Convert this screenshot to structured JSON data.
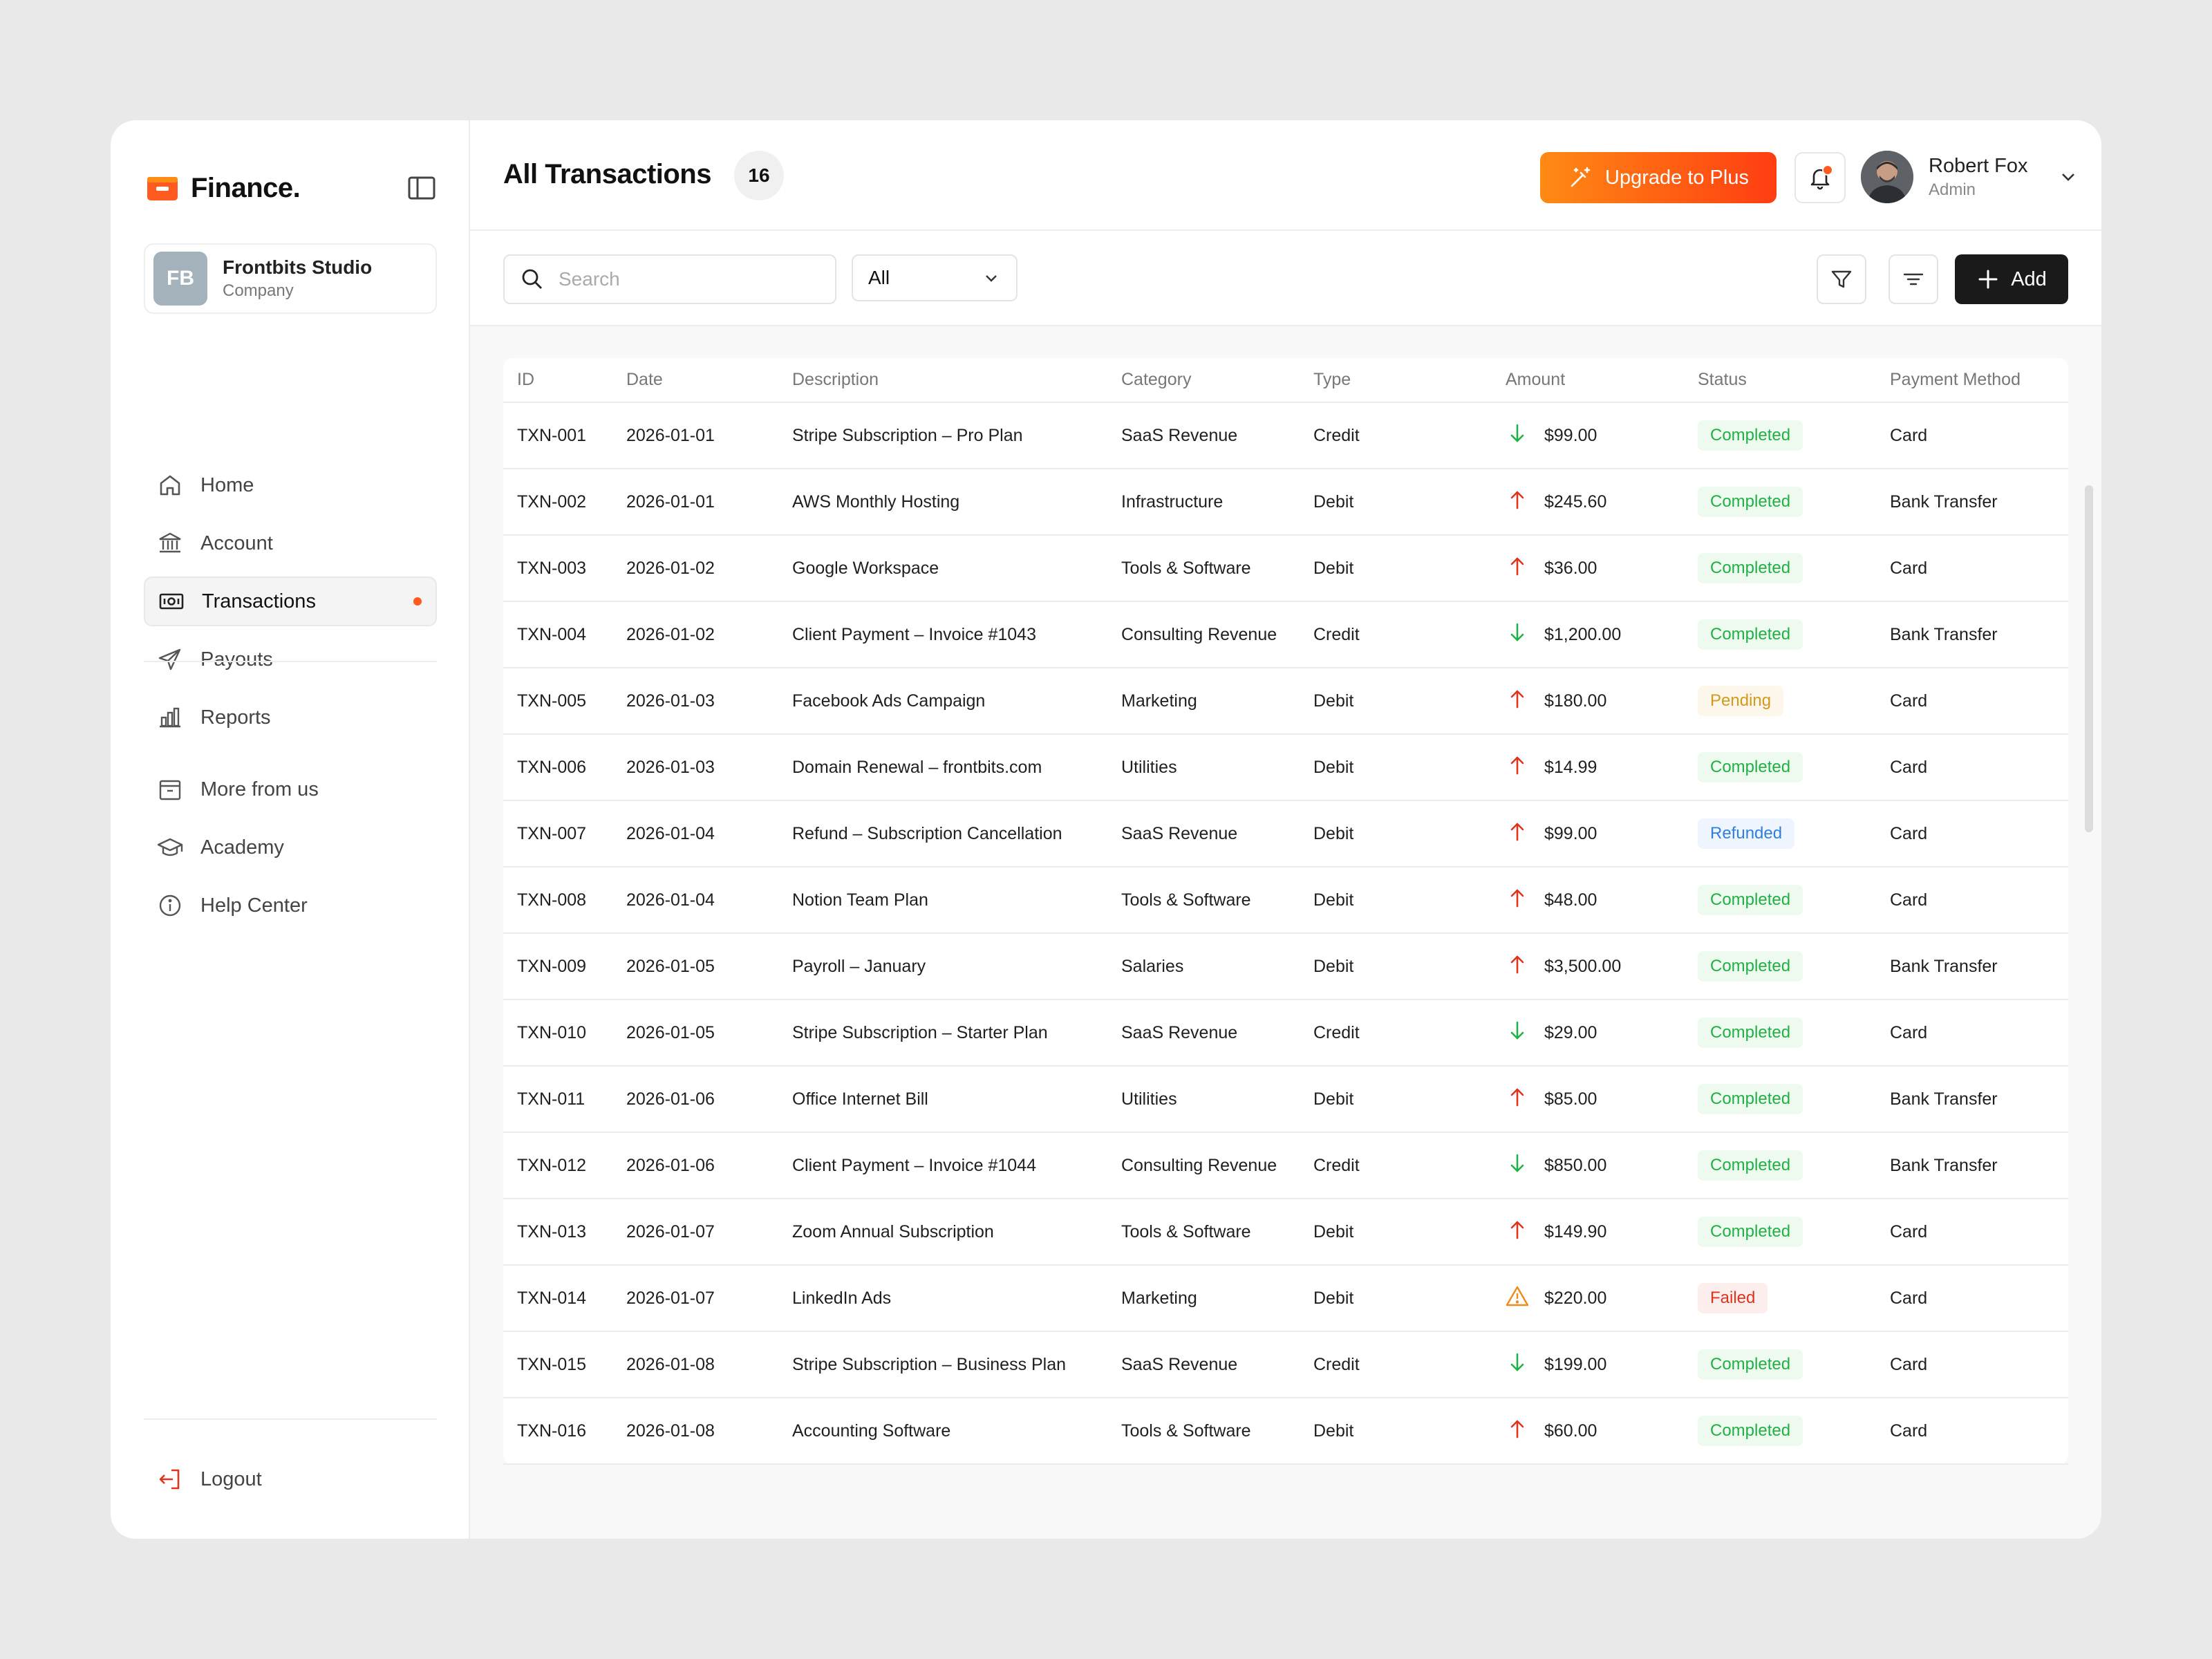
{
  "brand": {
    "name": "Finance.",
    "accent": "#ff5a1f"
  },
  "org": {
    "initials": "FB",
    "name": "Frontbits Studio",
    "type": "Company"
  },
  "nav": {
    "primary": [
      {
        "label": "Home",
        "icon": "home-icon"
      },
      {
        "label": "Account",
        "icon": "bank-icon"
      },
      {
        "label": "Transactions",
        "icon": "banknote-icon",
        "active": true
      },
      {
        "label": "Payouts",
        "icon": "send-icon"
      },
      {
        "label": "Reports",
        "icon": "bar-chart-icon"
      }
    ],
    "secondary": [
      {
        "label": "More from us",
        "icon": "archive-icon"
      },
      {
        "label": "Academy",
        "icon": "graduation-cap-icon"
      },
      {
        "label": "Help Center",
        "icon": "info-icon"
      }
    ],
    "logout": "Logout"
  },
  "header": {
    "title": "All Transactions",
    "count": "16",
    "upgrade_label": "Upgrade to Plus",
    "user": {
      "name": "Robert Fox",
      "role": "Admin"
    }
  },
  "toolbar": {
    "search_placeholder": "Search",
    "filter_value": "All",
    "add_label": "Add"
  },
  "table": {
    "columns": [
      "ID",
      "Date",
      "Description",
      "Category",
      "Type",
      "Amount",
      "Status",
      "Payment Method"
    ],
    "rows": [
      {
        "id": "TXN-001",
        "date": "2026-01-01",
        "description": "Stripe Subscription – Pro Plan",
        "category": "SaaS Revenue",
        "type": "Credit",
        "direction": "in",
        "amount": "$99.00",
        "status": "Completed",
        "method": "Card"
      },
      {
        "id": "TXN-002",
        "date": "2026-01-01",
        "description": "AWS Monthly Hosting",
        "category": "Infrastructure",
        "type": "Debit",
        "direction": "out",
        "amount": "$245.60",
        "status": "Completed",
        "method": "Bank Transfer"
      },
      {
        "id": "TXN-003",
        "date": "2026-01-02",
        "description": "Google Workspace",
        "category": "Tools & Software",
        "type": "Debit",
        "direction": "out",
        "amount": "$36.00",
        "status": "Completed",
        "method": "Card"
      },
      {
        "id": "TXN-004",
        "date": "2026-01-02",
        "description": "Client Payment – Invoice #1043",
        "category": "Consulting Revenue",
        "type": "Credit",
        "direction": "in",
        "amount": "$1,200.00",
        "status": "Completed",
        "method": "Bank Transfer"
      },
      {
        "id": "TXN-005",
        "date": "2026-01-03",
        "description": "Facebook Ads Campaign",
        "category": "Marketing",
        "type": "Debit",
        "direction": "out",
        "amount": "$180.00",
        "status": "Pending",
        "method": "Card"
      },
      {
        "id": "TXN-006",
        "date": "2026-01-03",
        "description": "Domain Renewal – frontbits.com",
        "category": "Utilities",
        "type": "Debit",
        "direction": "out",
        "amount": "$14.99",
        "status": "Completed",
        "method": "Card"
      },
      {
        "id": "TXN-007",
        "date": "2026-01-04",
        "description": "Refund – Subscription Cancellation",
        "category": "SaaS Revenue",
        "type": "Debit",
        "direction": "out",
        "amount": "$99.00",
        "status": "Refunded",
        "method": "Card"
      },
      {
        "id": "TXN-008",
        "date": "2026-01-04",
        "description": "Notion Team Plan",
        "category": "Tools & Software",
        "type": "Debit",
        "direction": "out",
        "amount": "$48.00",
        "status": "Completed",
        "method": "Card"
      },
      {
        "id": "TXN-009",
        "date": "2026-01-05",
        "description": "Payroll – January",
        "category": "Salaries",
        "type": "Debit",
        "direction": "out",
        "amount": "$3,500.00",
        "status": "Completed",
        "method": "Bank Transfer"
      },
      {
        "id": "TXN-010",
        "date": "2026-01-05",
        "description": "Stripe Subscription – Starter Plan",
        "category": "SaaS Revenue",
        "type": "Credit",
        "direction": "in",
        "amount": "$29.00",
        "status": "Completed",
        "method": "Card"
      },
      {
        "id": "TXN-011",
        "date": "2026-01-06",
        "description": "Office Internet Bill",
        "category": "Utilities",
        "type": "Debit",
        "direction": "out",
        "amount": "$85.00",
        "status": "Completed",
        "method": "Bank Transfer"
      },
      {
        "id": "TXN-012",
        "date": "2026-01-06",
        "description": "Client Payment – Invoice #1044",
        "category": "Consulting Revenue",
        "type": "Credit",
        "direction": "in",
        "amount": "$850.00",
        "status": "Completed",
        "method": "Bank Transfer"
      },
      {
        "id": "TXN-013",
        "date": "2026-01-07",
        "description": "Zoom Annual Subscription",
        "category": "Tools & Software",
        "type": "Debit",
        "direction": "out",
        "amount": "$149.90",
        "status": "Completed",
        "method": "Card"
      },
      {
        "id": "TXN-014",
        "date": "2026-01-07",
        "description": "LinkedIn Ads",
        "category": "Marketing",
        "type": "Debit",
        "direction": "warning",
        "amount": "$220.00",
        "status": "Failed",
        "method": "Card"
      },
      {
        "id": "TXN-015",
        "date": "2026-01-08",
        "description": "Stripe Subscription – Business Plan",
        "category": "SaaS Revenue",
        "type": "Credit",
        "direction": "in",
        "amount": "$199.00",
        "status": "Completed",
        "method": "Card"
      },
      {
        "id": "TXN-016",
        "date": "2026-01-08",
        "description": "Accounting Software",
        "category": "Tools & Software",
        "type": "Debit",
        "direction": "out",
        "amount": "$60.00",
        "status": "Completed",
        "method": "Card"
      }
    ]
  },
  "colors": {
    "in": "#1fb145",
    "out": "#e0331e",
    "warning": "#f08a1c"
  }
}
